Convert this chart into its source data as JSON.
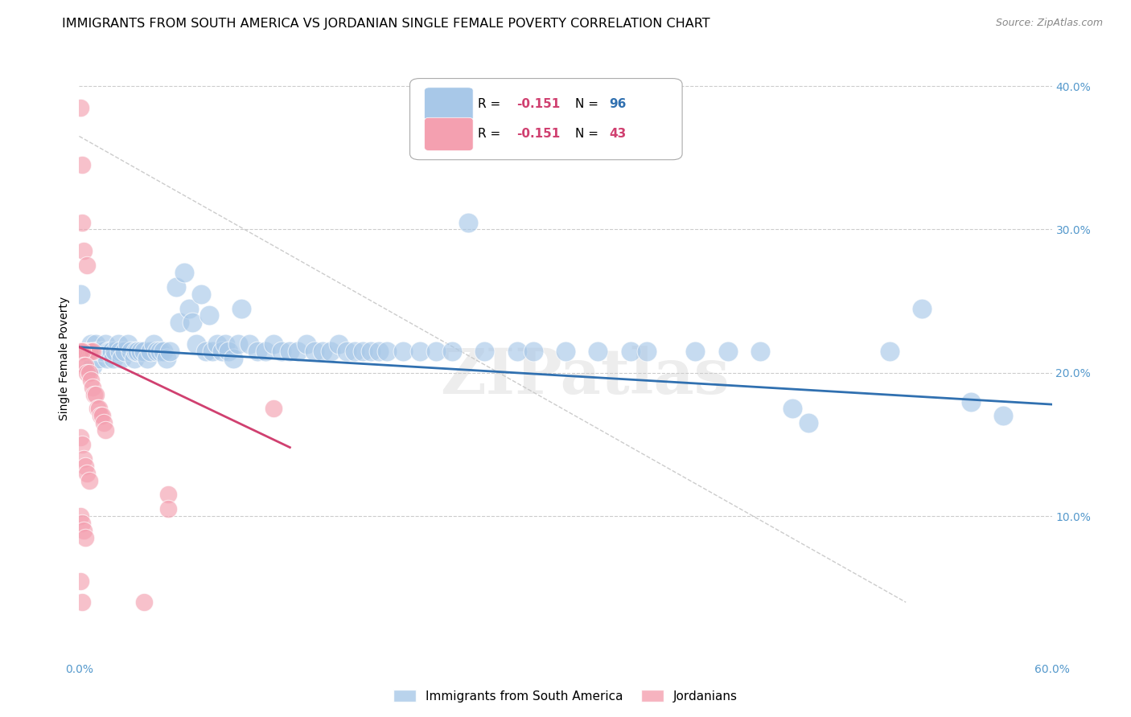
{
  "title": "IMMIGRANTS FROM SOUTH AMERICA VS JORDANIAN SINGLE FEMALE POVERTY CORRELATION CHART",
  "source": "Source: ZipAtlas.com",
  "ylabel": "Single Female Poverty",
  "xlim": [
    0.0,
    0.6
  ],
  "ylim": [
    0.0,
    0.42
  ],
  "xticks": [
    0.0,
    0.1,
    0.2,
    0.3,
    0.4,
    0.5,
    0.6
  ],
  "yticks": [
    0.0,
    0.1,
    0.2,
    0.3,
    0.4
  ],
  "ytick_labels": [
    "",
    "10.0%",
    "20.0%",
    "30.0%",
    "40.0%"
  ],
  "xtick_labels": [
    "0.0%",
    "",
    "",
    "",
    "",
    "",
    "60.0%"
  ],
  "legend_blue_R": "R = -0.151",
  "legend_blue_N": "N = 96",
  "legend_pink_R": "R = -0.151",
  "legend_pink_N": "N = 43",
  "blue_color": "#a8c8e8",
  "pink_color": "#f4a0b0",
  "line_blue_color": "#3070b0",
  "line_pink_color": "#d04070",
  "line_dashed_color": "#cccccc",
  "watermark": "ZIPatlas",
  "blue_scatter": [
    [
      0.001,
      0.255
    ],
    [
      0.003,
      0.215
    ],
    [
      0.004,
      0.215
    ],
    [
      0.005,
      0.215
    ],
    [
      0.006,
      0.215
    ],
    [
      0.007,
      0.22
    ],
    [
      0.008,
      0.205
    ],
    [
      0.009,
      0.215
    ],
    [
      0.01,
      0.22
    ],
    [
      0.011,
      0.215
    ],
    [
      0.012,
      0.21
    ],
    [
      0.013,
      0.215
    ],
    [
      0.014,
      0.215
    ],
    [
      0.015,
      0.215
    ],
    [
      0.016,
      0.22
    ],
    [
      0.017,
      0.21
    ],
    [
      0.018,
      0.215
    ],
    [
      0.019,
      0.215
    ],
    [
      0.02,
      0.215
    ],
    [
      0.021,
      0.21
    ],
    [
      0.022,
      0.215
    ],
    [
      0.024,
      0.22
    ],
    [
      0.025,
      0.215
    ],
    [
      0.026,
      0.21
    ],
    [
      0.028,
      0.215
    ],
    [
      0.03,
      0.22
    ],
    [
      0.032,
      0.215
    ],
    [
      0.034,
      0.21
    ],
    [
      0.035,
      0.215
    ],
    [
      0.036,
      0.215
    ],
    [
      0.038,
      0.215
    ],
    [
      0.04,
      0.215
    ],
    [
      0.042,
      0.21
    ],
    [
      0.044,
      0.215
    ],
    [
      0.046,
      0.22
    ],
    [
      0.048,
      0.215
    ],
    [
      0.05,
      0.215
    ],
    [
      0.052,
      0.215
    ],
    [
      0.054,
      0.21
    ],
    [
      0.056,
      0.215
    ],
    [
      0.06,
      0.26
    ],
    [
      0.062,
      0.235
    ],
    [
      0.065,
      0.27
    ],
    [
      0.068,
      0.245
    ],
    [
      0.07,
      0.235
    ],
    [
      0.072,
      0.22
    ],
    [
      0.075,
      0.255
    ],
    [
      0.078,
      0.215
    ],
    [
      0.08,
      0.24
    ],
    [
      0.082,
      0.215
    ],
    [
      0.085,
      0.22
    ],
    [
      0.088,
      0.215
    ],
    [
      0.09,
      0.22
    ],
    [
      0.092,
      0.215
    ],
    [
      0.095,
      0.21
    ],
    [
      0.098,
      0.22
    ],
    [
      0.1,
      0.245
    ],
    [
      0.105,
      0.22
    ],
    [
      0.11,
      0.215
    ],
    [
      0.115,
      0.215
    ],
    [
      0.12,
      0.22
    ],
    [
      0.125,
      0.215
    ],
    [
      0.13,
      0.215
    ],
    [
      0.135,
      0.215
    ],
    [
      0.14,
      0.22
    ],
    [
      0.145,
      0.215
    ],
    [
      0.15,
      0.215
    ],
    [
      0.155,
      0.215
    ],
    [
      0.16,
      0.22
    ],
    [
      0.165,
      0.215
    ],
    [
      0.17,
      0.215
    ],
    [
      0.175,
      0.215
    ],
    [
      0.18,
      0.215
    ],
    [
      0.185,
      0.215
    ],
    [
      0.19,
      0.215
    ],
    [
      0.2,
      0.215
    ],
    [
      0.21,
      0.215
    ],
    [
      0.22,
      0.215
    ],
    [
      0.23,
      0.215
    ],
    [
      0.24,
      0.305
    ],
    [
      0.25,
      0.215
    ],
    [
      0.27,
      0.215
    ],
    [
      0.28,
      0.215
    ],
    [
      0.3,
      0.215
    ],
    [
      0.32,
      0.215
    ],
    [
      0.34,
      0.215
    ],
    [
      0.35,
      0.215
    ],
    [
      0.38,
      0.215
    ],
    [
      0.4,
      0.215
    ],
    [
      0.42,
      0.215
    ],
    [
      0.44,
      0.175
    ],
    [
      0.45,
      0.165
    ],
    [
      0.5,
      0.215
    ],
    [
      0.52,
      0.245
    ],
    [
      0.55,
      0.18
    ],
    [
      0.57,
      0.17
    ]
  ],
  "pink_scatter": [
    [
      0.001,
      0.385
    ],
    [
      0.002,
      0.345
    ],
    [
      0.002,
      0.305
    ],
    [
      0.003,
      0.285
    ],
    [
      0.005,
      0.275
    ],
    [
      0.003,
      0.215
    ],
    [
      0.004,
      0.215
    ],
    [
      0.005,
      0.215
    ],
    [
      0.006,
      0.215
    ],
    [
      0.007,
      0.215
    ],
    [
      0.008,
      0.215
    ],
    [
      0.001,
      0.215
    ],
    [
      0.002,
      0.215
    ],
    [
      0.003,
      0.205
    ],
    [
      0.004,
      0.205
    ],
    [
      0.005,
      0.2
    ],
    [
      0.006,
      0.2
    ],
    [
      0.007,
      0.195
    ],
    [
      0.008,
      0.19
    ],
    [
      0.009,
      0.185
    ],
    [
      0.01,
      0.185
    ],
    [
      0.011,
      0.175
    ],
    [
      0.012,
      0.175
    ],
    [
      0.013,
      0.17
    ],
    [
      0.014,
      0.17
    ],
    [
      0.015,
      0.165
    ],
    [
      0.016,
      0.16
    ],
    [
      0.001,
      0.155
    ],
    [
      0.002,
      0.15
    ],
    [
      0.003,
      0.14
    ],
    [
      0.004,
      0.135
    ],
    [
      0.005,
      0.13
    ],
    [
      0.006,
      0.125
    ],
    [
      0.001,
      0.1
    ],
    [
      0.002,
      0.095
    ],
    [
      0.003,
      0.09
    ],
    [
      0.004,
      0.085
    ],
    [
      0.001,
      0.055
    ],
    [
      0.002,
      0.04
    ],
    [
      0.04,
      0.04
    ],
    [
      0.055,
      0.115
    ],
    [
      0.055,
      0.105
    ],
    [
      0.12,
      0.175
    ]
  ],
  "blue_line_x": [
    0.0,
    0.6
  ],
  "blue_line_y": [
    0.218,
    0.178
  ],
  "pink_line_x": [
    0.0,
    0.13
  ],
  "pink_line_y": [
    0.218,
    0.148
  ],
  "dashed_line_x": [
    0.0,
    0.51
  ],
  "dashed_line_y": [
    0.365,
    0.04
  ],
  "background_color": "#ffffff",
  "grid_color": "#cccccc",
  "axis_color": "#5599cc",
  "title_fontsize": 11.5,
  "label_fontsize": 10,
  "tick_fontsize": 10,
  "legend_fontsize": 11
}
